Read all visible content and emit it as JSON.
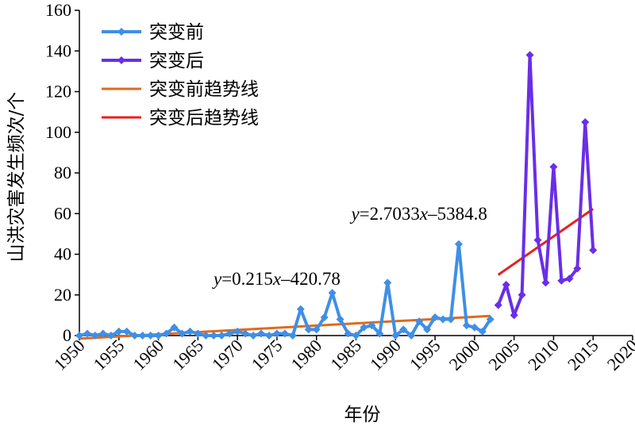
{
  "chart_data": {
    "type": "line",
    "xlabel": "年份",
    "ylabel": "山洪灾害发生频次/个",
    "xlim": [
      1950,
      2020
    ],
    "ylim": [
      0,
      160
    ],
    "x_ticks": [
      1950,
      1955,
      1960,
      1965,
      1970,
      1975,
      1980,
      1985,
      1990,
      1995,
      2000,
      2005,
      2010,
      2015,
      2020
    ],
    "y_ticks": [
      0,
      20,
      40,
      60,
      80,
      100,
      120,
      140,
      160
    ],
    "grid": false,
    "legend_position": "top-left",
    "series": [
      {
        "name": "突变前",
        "color": "#3f8fe6",
        "marker": "diamond",
        "x": [
          1950,
          1951,
          1952,
          1953,
          1954,
          1955,
          1956,
          1957,
          1958,
          1959,
          1960,
          1961,
          1962,
          1963,
          1964,
          1965,
          1966,
          1967,
          1968,
          1969,
          1970,
          1971,
          1972,
          1973,
          1974,
          1975,
          1976,
          1977,
          1978,
          1979,
          1980,
          1981,
          1982,
          1983,
          1984,
          1985,
          1986,
          1987,
          1988,
          1989,
          1990,
          1991,
          1992,
          1993,
          1994,
          1995,
          1996,
          1997,
          1998,
          1999,
          2000,
          2001,
          2002
        ],
        "values": [
          0,
          1,
          0,
          1,
          0,
          2,
          2,
          0,
          0,
          0,
          0,
          1,
          4,
          1,
          2,
          1,
          0,
          0,
          0,
          1,
          2,
          1,
          0,
          1,
          0,
          1,
          1,
          0,
          13,
          3,
          3,
          9,
          21,
          8,
          1,
          0,
          4,
          5,
          1,
          26,
          0,
          3,
          0,
          7,
          3,
          9,
          8,
          8,
          45,
          5,
          4,
          2,
          8
        ]
      },
      {
        "name": "突变后",
        "color": "#6a2ee8",
        "marker": "diamond",
        "x": [
          2003,
          2004,
          2005,
          2006,
          2007,
          2008,
          2009,
          2010,
          2011,
          2012,
          2013,
          2014,
          2015
        ],
        "values": [
          15,
          25,
          10,
          20,
          138,
          47,
          26,
          83,
          27,
          28,
          33,
          105,
          42
        ]
      },
      {
        "name": "突变前趋势线",
        "color": "#e06a1c",
        "type": "trendline",
        "x": [
          1950,
          2002
        ],
        "values": [
          -1.53,
          9.65
        ]
      },
      {
        "name": "突变后趋势线",
        "color": "#e82020",
        "type": "trendline",
        "x": [
          2003,
          2015
        ],
        "values": [
          29.9,
          62.3
        ]
      }
    ],
    "annotations": [
      {
        "italic": "y",
        "rest": "=0.215",
        "italic2": "x",
        "rest2": "–420.78",
        "x": 1975,
        "y": 25
      },
      {
        "italic": "y",
        "rest": "=2.7033",
        "italic2": "x",
        "rest2": "–5384.8",
        "x": 1993,
        "y": 57
      }
    ]
  }
}
